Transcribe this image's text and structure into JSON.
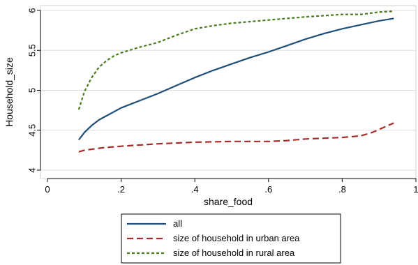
{
  "chart_data": {
    "type": "line",
    "xlabel": "share_food",
    "ylabel": "Household_size",
    "xlim": [
      0,
      1
    ],
    "ylim": [
      4,
      6
    ],
    "grid": "horizontal",
    "x_ticks": [
      0,
      0.2,
      0.4,
      0.6,
      0.8,
      1
    ],
    "x_tick_labels": [
      "0",
      ".2",
      ".4",
      ".6",
      ".8",
      "1"
    ],
    "y_ticks": [
      4,
      4.5,
      5,
      5.5,
      6
    ],
    "y_tick_labels": [
      "4",
      "4.5",
      "5",
      "5.5",
      "6"
    ],
    "legend_position": "bottom",
    "series": [
      {
        "name": "all",
        "color": "#1f4e79",
        "dash": "solid",
        "x": [
          0.085,
          0.1,
          0.12,
          0.14,
          0.16,
          0.2,
          0.25,
          0.3,
          0.35,
          0.4,
          0.45,
          0.5,
          0.55,
          0.6,
          0.65,
          0.7,
          0.75,
          0.8,
          0.85,
          0.9,
          0.94
        ],
        "y": [
          4.38,
          4.47,
          4.56,
          4.63,
          4.68,
          4.78,
          4.87,
          4.96,
          5.06,
          5.16,
          5.25,
          5.33,
          5.41,
          5.48,
          5.56,
          5.64,
          5.71,
          5.77,
          5.82,
          5.87,
          5.9
        ]
      },
      {
        "name": "size of household in  urban area",
        "color": "#a52a2a",
        "dash": "long",
        "x": [
          0.085,
          0.1,
          0.15,
          0.2,
          0.3,
          0.4,
          0.5,
          0.6,
          0.65,
          0.7,
          0.75,
          0.8,
          0.85,
          0.88,
          0.9,
          0.94
        ],
        "y": [
          4.23,
          4.25,
          4.28,
          4.3,
          4.33,
          4.35,
          4.36,
          4.36,
          4.37,
          4.39,
          4.4,
          4.41,
          4.43,
          4.47,
          4.51,
          4.59
        ]
      },
      {
        "name": "size of household in  rural area",
        "color": "#4a7a1e",
        "dash": "short",
        "x": [
          0.085,
          0.1,
          0.12,
          0.14,
          0.16,
          0.18,
          0.2,
          0.25,
          0.3,
          0.35,
          0.4,
          0.45,
          0.5,
          0.6,
          0.7,
          0.8,
          0.85,
          0.9,
          0.94
        ],
        "y": [
          4.76,
          4.98,
          5.16,
          5.29,
          5.37,
          5.43,
          5.47,
          5.54,
          5.6,
          5.69,
          5.77,
          5.81,
          5.84,
          5.88,
          5.92,
          5.95,
          5.95,
          5.98,
          5.99
        ]
      }
    ]
  }
}
